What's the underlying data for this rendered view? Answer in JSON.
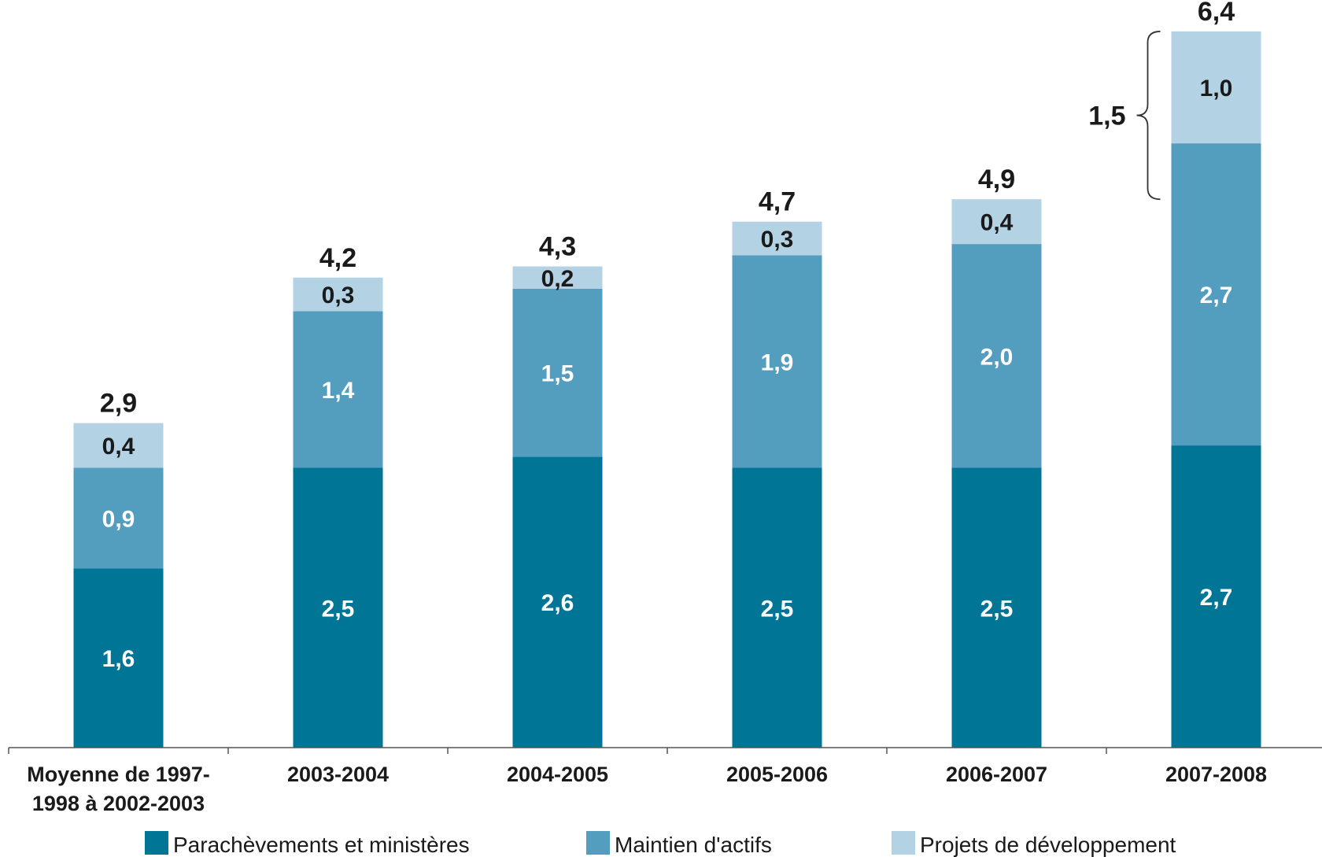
{
  "chart_data": {
    "type": "bar",
    "stacked": true,
    "categories": [
      [
        "Moyenne de 1997-",
        "1998 à 2002-2003"
      ],
      [
        "2003-2004"
      ],
      [
        "2004-2005"
      ],
      [
        "2005-2006"
      ],
      [
        "2006-2007"
      ],
      [
        "2007-2008"
      ]
    ],
    "series": [
      {
        "name": "Parachèvements et ministères",
        "color": "#007596",
        "label_color": "#ffffff",
        "values": [
          1.6,
          2.5,
          2.6,
          2.5,
          2.5,
          2.7
        ],
        "labels": [
          "1,6",
          "2,5",
          "2,6",
          "2,5",
          "2,5",
          "2,7"
        ]
      },
      {
        "name": "Maintien d'actifs",
        "color": "#539dbf",
        "label_color": "#ffffff",
        "values": [
          0.9,
          1.4,
          1.5,
          1.9,
          2.0,
          2.7
        ],
        "labels": [
          "0,9",
          "1,4",
          "1,5",
          "1,9",
          "2,0",
          "2,7"
        ]
      },
      {
        "name": "Projets de développement",
        "color": "#b3d2e4",
        "label_color": "#1a1a1a",
        "values": [
          0.4,
          0.3,
          0.2,
          0.3,
          0.4,
          1.0
        ],
        "labels": [
          "0,4",
          "0,3",
          "0,2",
          "0,3",
          "0,4",
          "1,0"
        ]
      }
    ],
    "totals": [
      2.9,
      4.2,
      4.3,
      4.7,
      4.9,
      6.4
    ],
    "total_labels": [
      "2,9",
      "4,2",
      "4,3",
      "4,7",
      "4,9",
      "6,4"
    ],
    "annotations": [
      {
        "text": "1,5",
        "category_index": 5,
        "from": 4.9,
        "to": 6.4,
        "shape": "brace"
      }
    ],
    "ylim": [
      0,
      6.4
    ],
    "grid": false,
    "legend": "bottom"
  }
}
